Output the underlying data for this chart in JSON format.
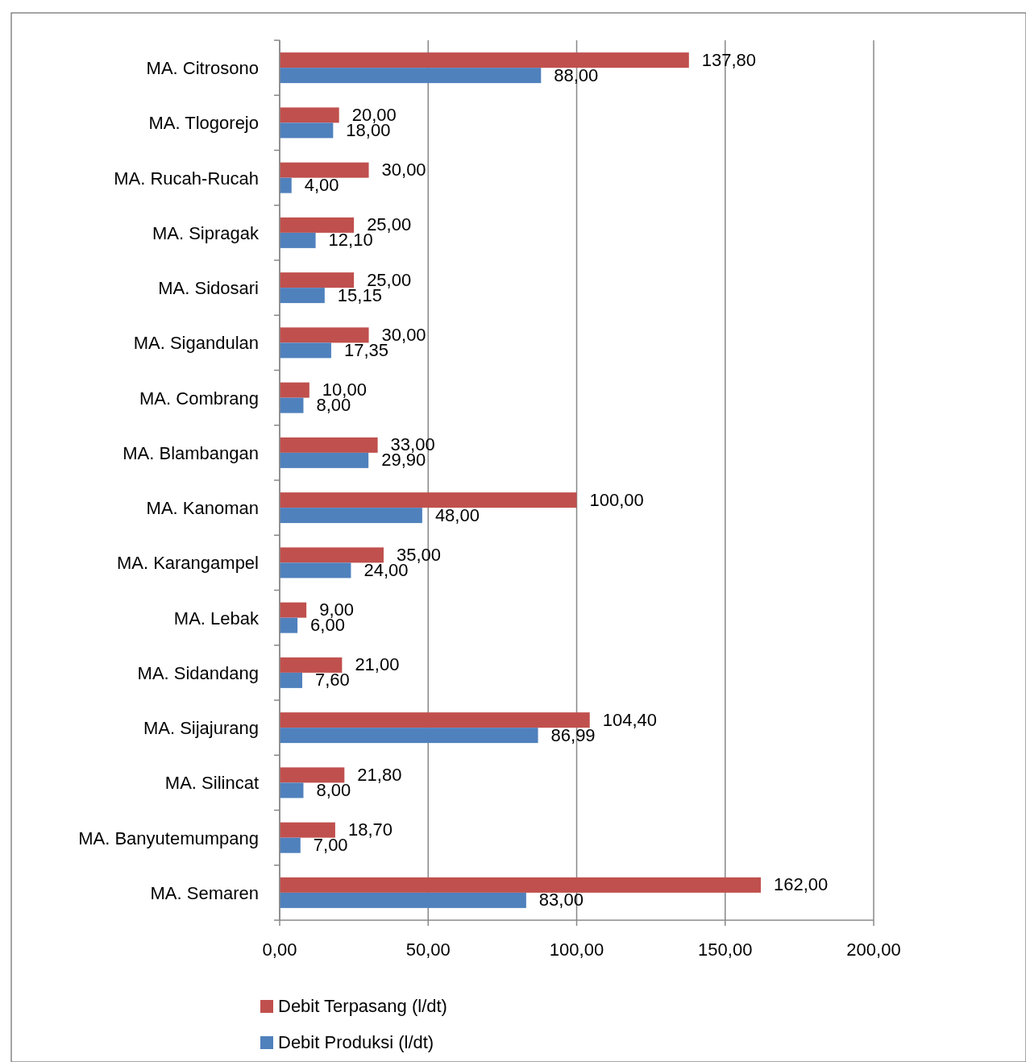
{
  "chart_data": {
    "type": "bar",
    "orientation": "horizontal",
    "categories": [
      "MA. Citrosono",
      "MA. Tlogorejo",
      "MA. Rucah-Rucah",
      "MA. Sipragak",
      "MA. Sidosari",
      "MA. Sigandulan",
      "MA. Combrang",
      "MA. Blambangan",
      "MA. Kanoman",
      "MA. Karangampel",
      "MA. Lebak",
      "MA. Sidandang",
      "MA. Sijajurang",
      "MA. Silincat",
      "MA. Banyutemumpang",
      "MA. Semaren"
    ],
    "series": [
      {
        "name": "Debit Terpasang (l/dt)",
        "color": "#c0504d",
        "values": [
          137.8,
          20,
          30,
          25,
          25,
          30,
          10,
          33,
          100,
          35,
          9,
          21,
          104.4,
          21.8,
          18.7,
          162
        ],
        "value_labels": [
          "137,80",
          "20,00",
          "30,00",
          "25,00",
          "25,00",
          "30,00",
          "10,00",
          "33,00",
          "100,00",
          "35,00",
          "9,00",
          "21,00",
          "104,40",
          "21,80",
          "18,70",
          "162,00"
        ]
      },
      {
        "name": "Debit Produksi (l/dt)",
        "color": "#4f81bd",
        "values": [
          88,
          18,
          4,
          12.1,
          15.15,
          17.35,
          8,
          29.9,
          48,
          24,
          6,
          7.6,
          86.99,
          8,
          7,
          83
        ],
        "value_labels": [
          "88,00",
          "18,00",
          "4,00",
          "12,10",
          "15,15",
          "17,35",
          "8,00",
          "29,90",
          "48,00",
          "24,00",
          "6,00",
          "7,60",
          "86,99",
          "8,00",
          "7,00",
          "83,00"
        ]
      }
    ],
    "xlim": [
      0,
      200
    ],
    "xticks": [
      {
        "value": 0,
        "label": "0,00"
      },
      {
        "value": 50,
        "label": "50,00"
      },
      {
        "value": 100,
        "label": "100,00"
      },
      {
        "value": 150,
        "label": "150,00"
      },
      {
        "value": 200,
        "label": "200,00"
      }
    ],
    "grid": "x",
    "legend": "bottom"
  }
}
